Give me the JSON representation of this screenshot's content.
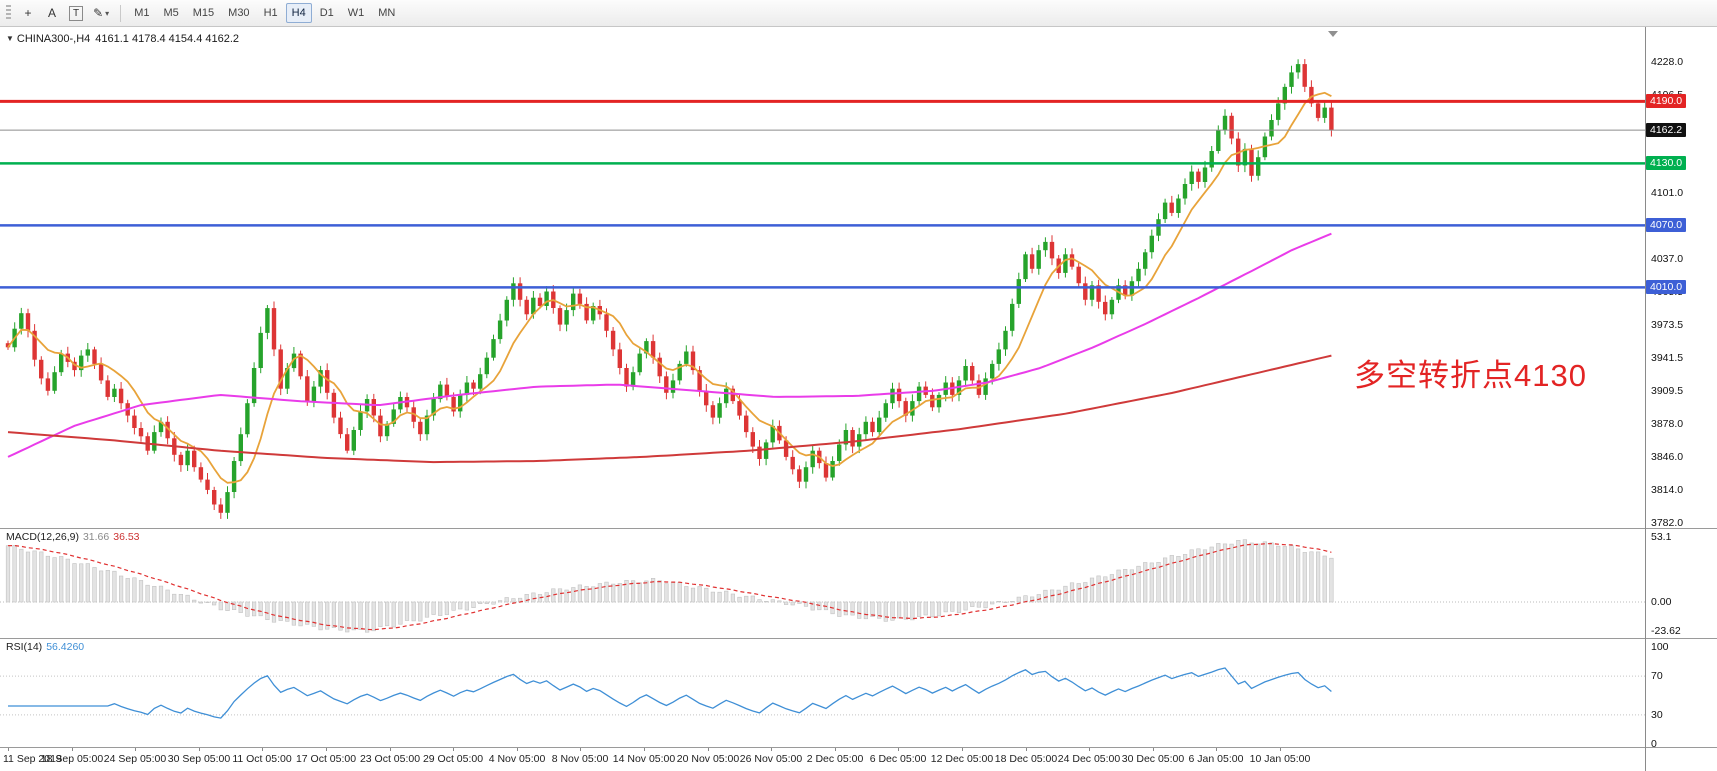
{
  "toolbar": {
    "tools": [
      {
        "id": "crosshair",
        "glyph": "+"
      },
      {
        "id": "text",
        "glyph": "A"
      },
      {
        "id": "text-label",
        "glyph": "T",
        "boxed": true
      },
      {
        "id": "draw",
        "glyph": "✎",
        "caret": true
      }
    ],
    "timeframes": [
      "M1",
      "M5",
      "M15",
      "M30",
      "H1",
      "H4",
      "D1",
      "W1",
      "MN"
    ],
    "active_timeframe": "H4"
  },
  "chart": {
    "symbol_info": {
      "marker": "▼",
      "title": "CHINA300-,H4",
      "ohlc": "4161.1 4178.4 4154.4 4162.2"
    },
    "annotation": {
      "text": "多空转折点4130",
      "color": "#e32424"
    },
    "axis_scale": [
      4228.0,
      4196.5,
      4164.5,
      4132.5,
      4101.0,
      4069.0,
      4037.0,
      4005.5,
      3973.5,
      3941.5,
      3909.5,
      3878.0,
      3846.0,
      3814.0,
      3782.0
    ],
    "hlines": [
      {
        "price": 4190.0,
        "label": "4190.0",
        "color": "#e32424",
        "width": 3,
        "tag": "#e32424"
      },
      {
        "price": 4162.2,
        "label": "4162.2",
        "color": "#8c8c8c",
        "width": 1,
        "tag": "#111111"
      },
      {
        "price": 4130.0,
        "label": "4130.0",
        "color": "#00b050",
        "width": 2.5,
        "tag": "#00b050"
      },
      {
        "price": 4070.0,
        "label": "4070.0",
        "color": "#3d5fd6",
        "width": 2.5,
        "tag": "#3d5fd6"
      },
      {
        "price": 4010.0,
        "label": "4010.0",
        "color": "#3d5fd6",
        "width": 2.5,
        "tag": "#3d5fd6"
      }
    ]
  },
  "colors": {
    "up": "#26a32b",
    "down": "#dd3535",
    "ma_fast": "#e8a33a",
    "ma_mid": "#e93ce9",
    "ma_slow": "#cf3a3a",
    "macd_hist_fill": "#e3e3e3",
    "macd_hist_stroke": "#c2c2c2",
    "macd_signal": "#e03030",
    "rsi": "#3f8fd6"
  },
  "chart_data": {
    "type": "candlestick",
    "title": "CHINA300- H4",
    "visible_price_range": [
      3782.0,
      4228.0
    ],
    "closes": [
      3952,
      3970,
      3985,
      3968,
      3940,
      3922,
      3910,
      3928,
      3946,
      3938,
      3930,
      3944,
      3950,
      3936,
      3920,
      3904,
      3912,
      3898,
      3886,
      3874,
      3866,
      3852,
      3870,
      3880,
      3864,
      3848,
      3838,
      3852,
      3836,
      3824,
      3814,
      3800,
      3792,
      3812,
      3842,
      3868,
      3898,
      3932,
      3966,
      3990,
      3950,
      3912,
      3932,
      3946,
      3924,
      3900,
      3914,
      3930,
      3908,
      3884,
      3868,
      3852,
      3872,
      3890,
      3902,
      3886,
      3866,
      3878,
      3892,
      3904,
      3894,
      3880,
      3868,
      3886,
      3902,
      3916,
      3904,
      3890,
      3906,
      3918,
      3912,
      3926,
      3942,
      3960,
      3978,
      3998,
      4014,
      3998,
      3984,
      4000,
      3992,
      4006,
      3990,
      3974,
      3988,
      4004,
      3994,
      3978,
      3992,
      3984,
      3968,
      3950,
      3932,
      3914,
      3928,
      3946,
      3958,
      3942,
      3924,
      3908,
      3920,
      3936,
      3948,
      3930,
      3910,
      3896,
      3884,
      3898,
      3912,
      3900,
      3886,
      3870,
      3856,
      3844,
      3860,
      3876,
      3862,
      3846,
      3834,
      3822,
      3836,
      3852,
      3840,
      3826,
      3842,
      3858,
      3872,
      3856,
      3868,
      3880,
      3870,
      3884,
      3898,
      3912,
      3900,
      3886,
      3900,
      3914,
      3906,
      3894,
      3906,
      3918,
      3906,
      3920,
      3934,
      3920,
      3906,
      3922,
      3936,
      3950,
      3968,
      3994,
      4018,
      4042,
      4028,
      4046,
      4054,
      4038,
      4024,
      4042,
      4030,
      4014,
      3998,
      4012,
      3996,
      3984,
      3998,
      4012,
      4002,
      4016,
      4028,
      4044,
      4060,
      4076,
      4092,
      4082,
      4096,
      4110,
      4122,
      4112,
      4126,
      4142,
      4162,
      4176,
      4154,
      4128,
      4144,
      4118,
      4136,
      4156,
      4172,
      4188,
      4204,
      4218,
      4226,
      4204,
      4188,
      4174,
      4184,
      4162
    ],
    "ma_mid": [
      [
        0,
        3846
      ],
      [
        0.05,
        3876
      ],
      [
        0.1,
        3896
      ],
      [
        0.16,
        3906
      ],
      [
        0.22,
        3900
      ],
      [
        0.28,
        3896
      ],
      [
        0.34,
        3906
      ],
      [
        0.4,
        3914
      ],
      [
        0.46,
        3916
      ],
      [
        0.52,
        3910
      ],
      [
        0.58,
        3904
      ],
      [
        0.64,
        3905
      ],
      [
        0.7,
        3910
      ],
      [
        0.74,
        3918
      ],
      [
        0.78,
        3932
      ],
      [
        0.82,
        3952
      ],
      [
        0.86,
        3975
      ],
      [
        0.9,
        4000
      ],
      [
        0.94,
        4026
      ],
      [
        0.97,
        4046
      ],
      [
        1.0,
        4062
      ]
    ],
    "ma_slow": [
      [
        0,
        3870
      ],
      [
        0.08,
        3862
      ],
      [
        0.16,
        3852
      ],
      [
        0.24,
        3845
      ],
      [
        0.32,
        3841
      ],
      [
        0.4,
        3842
      ],
      [
        0.48,
        3846
      ],
      [
        0.56,
        3852
      ],
      [
        0.64,
        3861
      ],
      [
        0.72,
        3873
      ],
      [
        0.8,
        3888
      ],
      [
        0.88,
        3908
      ],
      [
        0.94,
        3926
      ],
      [
        1.0,
        3944
      ]
    ],
    "macd": {
      "name": "MACD(12,26,9)",
      "value_main": "31.66",
      "value_signal": "36.53",
      "axis": [
        {
          "v": 53.1,
          "t": "53.1"
        },
        {
          "v": 0,
          "t": "0.00"
        },
        {
          "v": -23.62,
          "t": "-23.62"
        }
      ],
      "hist": [
        [
          0,
          46
        ],
        [
          0.04,
          36
        ],
        [
          0.08,
          24
        ],
        [
          0.12,
          10
        ],
        [
          0.16,
          -5
        ],
        [
          0.2,
          -15
        ],
        [
          0.24,
          -22
        ],
        [
          0.27,
          -24
        ],
        [
          0.3,
          -17
        ],
        [
          0.34,
          -7
        ],
        [
          0.38,
          3
        ],
        [
          0.42,
          11
        ],
        [
          0.46,
          16
        ],
        [
          0.49,
          18
        ],
        [
          0.52,
          12
        ],
        [
          0.56,
          4
        ],
        [
          0.6,
          -3
        ],
        [
          0.63,
          -11
        ],
        [
          0.67,
          -15
        ],
        [
          0.7,
          -11
        ],
        [
          0.74,
          -3
        ],
        [
          0.78,
          7
        ],
        [
          0.82,
          19
        ],
        [
          0.86,
          31
        ],
        [
          0.9,
          43
        ],
        [
          0.93,
          50
        ],
        [
          0.96,
          47
        ],
        [
          1.0,
          37
        ]
      ]
    },
    "rsi": {
      "name": "RSI(14)",
      "value": "56.4260",
      "period": 14,
      "levels": [
        70,
        30
      ],
      "axis": [
        {
          "v": 100,
          "t": "100"
        },
        {
          "v": 70,
          "t": "70"
        },
        {
          "v": 30,
          "t": "30"
        },
        {
          "v": 0,
          "t": "0"
        }
      ]
    }
  },
  "time_axis": {
    "labels": [
      "11 Sep 2019",
      "18 Sep 05:00",
      "24 Sep 05:00",
      "30 Sep 05:00",
      "11 Oct 05:00",
      "17 Oct 05:00",
      "23 Oct 05:00",
      "29 Oct 05:00",
      "4 Nov 05:00",
      "8 Nov 05:00",
      "14 Nov 05:00",
      "20 Nov 05:00",
      "26 Nov 05:00",
      "2 Dec 05:00",
      "6 Dec 05:00",
      "12 Dec 05:00",
      "18 Dec 05:00",
      "24 Dec 05:00",
      "30 Dec 05:00",
      "6 Jan 05:00",
      "10 Jan 05:00"
    ]
  }
}
